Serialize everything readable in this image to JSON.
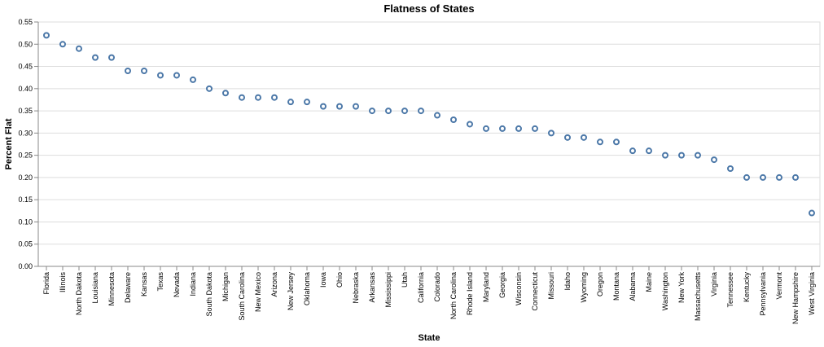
{
  "colors": {
    "point": "#4c78a8"
  },
  "chart_data": {
    "type": "scatter",
    "title": "Flatness of States",
    "xlabel": "State",
    "ylabel": "Percent Flat",
    "ylim": [
      0,
      0.55
    ],
    "yticks": [
      "0.00",
      "0.05",
      "0.10",
      "0.15",
      "0.20",
      "0.25",
      "0.30",
      "0.35",
      "0.40",
      "0.45",
      "0.50",
      "0.55"
    ],
    "grid": true,
    "categories": [
      "Florida",
      "Illinois",
      "North Dakota",
      "Louisiana",
      "Minnesota",
      "Delaware",
      "Kansas",
      "Texas",
      "Nevada",
      "Indiana",
      "South Dakota",
      "Michigan",
      "South Carolina",
      "New Mexico",
      "Arizona",
      "New Jersey",
      "Oklahoma",
      "Iowa",
      "Ohio",
      "Nebraska",
      "Arkansas",
      "Mississippi",
      "Utah",
      "California",
      "Colorado",
      "North Carolina",
      "Rhode Island",
      "Maryland",
      "Georgia",
      "Wisconsin",
      "Connecticut",
      "Missouri",
      "Idaho",
      "Wyoming",
      "Oregon",
      "Montana",
      "Alabama",
      "Maine",
      "Washington",
      "New York",
      "Massachusetts",
      "Virginia",
      "Tennessee",
      "Kentucky",
      "Pennsylvania",
      "Vermont",
      "New Hampshire",
      "West Virginia"
    ],
    "values": [
      0.52,
      0.5,
      0.49,
      0.47,
      0.47,
      0.44,
      0.44,
      0.43,
      0.43,
      0.42,
      0.4,
      0.39,
      0.38,
      0.38,
      0.38,
      0.37,
      0.37,
      0.36,
      0.36,
      0.36,
      0.35,
      0.35,
      0.35,
      0.35,
      0.34,
      0.33,
      0.32,
      0.31,
      0.31,
      0.31,
      0.31,
      0.3,
      0.29,
      0.29,
      0.28,
      0.28,
      0.26,
      0.26,
      0.25,
      0.25,
      0.25,
      0.24,
      0.22,
      0.2,
      0.2,
      0.2,
      0.2,
      0.12
    ]
  }
}
